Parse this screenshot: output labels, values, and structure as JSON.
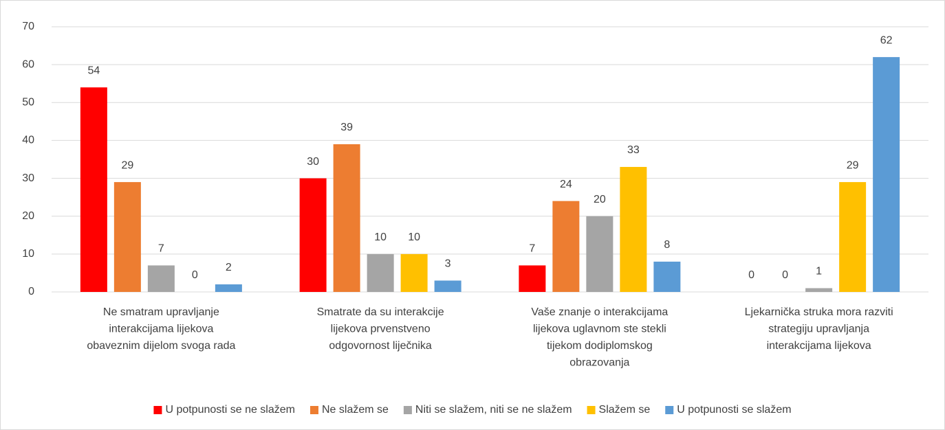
{
  "chart_data": {
    "type": "bar",
    "categories": [
      "Ne smatram upravljanje interakcijama lijekova obaveznim dijelom svoga rada",
      "Smatrate da su interakcije lijekova prvenstveno odgovornost liječnika",
      "Vaše znanje o interakcijama lijekova uglavnom ste stekli tijekom dodiplomskog obrazovanja",
      "Ljekarnička struka mora razviti strategiju upravljanja interakcijama lijekova"
    ],
    "series": [
      {
        "name": "U potpunosti se ne slažem",
        "color": "#ff0000",
        "values": [
          54,
          30,
          7,
          0
        ]
      },
      {
        "name": "Ne slažem se",
        "color": "#ed7d31",
        "values": [
          29,
          39,
          24,
          0
        ]
      },
      {
        "name": "Niti se slažem, niti se ne slažem",
        "color": "#a5a5a5",
        "values": [
          7,
          10,
          20,
          1
        ]
      },
      {
        "name": "Slažem se",
        "color": "#ffc000",
        "values": [
          0,
          10,
          33,
          29
        ]
      },
      {
        "name": "U potpunosti se slažem",
        "color": "#5b9bd5",
        "values": [
          2,
          3,
          8,
          62
        ]
      }
    ],
    "ylim": [
      0,
      70
    ],
    "yticks": [
      0,
      10,
      20,
      30,
      40,
      50,
      60,
      70
    ],
    "grid": true,
    "legend": "bottom"
  }
}
